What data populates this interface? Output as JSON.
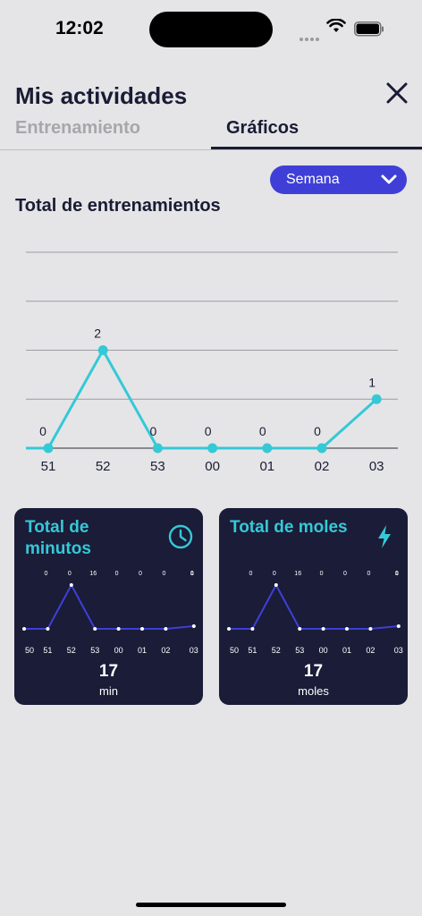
{
  "status": {
    "time": "12:02"
  },
  "header": {
    "title": "Mis actividades"
  },
  "tabs": [
    {
      "label": "Entrenamiento",
      "active": false
    },
    {
      "label": "Gráficos",
      "active": true
    }
  ],
  "period": {
    "selected": "Semana"
  },
  "section_title": "Total de entrenamientos",
  "colors": {
    "accent": "#35c9d6",
    "primary": "#3f3fd8",
    "card_bg": "#1a1c38",
    "text": "#1a1c35"
  },
  "chart_data": [
    {
      "type": "line",
      "title": "Total de entrenamientos",
      "categories": [
        "51",
        "52",
        "53",
        "00",
        "01",
        "02",
        "03"
      ],
      "series": [
        {
          "values": [
            0,
            2,
            0,
            0,
            0,
            0,
            1
          ]
        }
      ],
      "ylim": [
        0,
        4
      ],
      "grid": true
    },
    {
      "type": "line",
      "title": "Total de minutos",
      "categories": [
        "50",
        "51",
        "52",
        "53",
        "00",
        "01",
        "02",
        "03"
      ],
      "series": [
        {
          "values": [
            0,
            0,
            16,
            0,
            0,
            0,
            0,
            1
          ]
        }
      ],
      "ylim": [
        0,
        16
      ],
      "total": "17",
      "unit": "min"
    },
    {
      "type": "line",
      "title": "Total de moles",
      "categories": [
        "50",
        "51",
        "52",
        "53",
        "00",
        "01",
        "02",
        "03"
      ],
      "series": [
        {
          "values": [
            0,
            0,
            16,
            0,
            0,
            0,
            0,
            1
          ]
        }
      ],
      "ylim": [
        0,
        16
      ],
      "total": "17",
      "unit": "moles"
    }
  ],
  "cards": {
    "minutes": {
      "title": "Total de minutos",
      "icon": "clock-icon",
      "total": "17",
      "unit": "min"
    },
    "moles": {
      "title": "Total de moles",
      "icon": "bolt-icon",
      "total": "17",
      "unit": "moles"
    }
  }
}
